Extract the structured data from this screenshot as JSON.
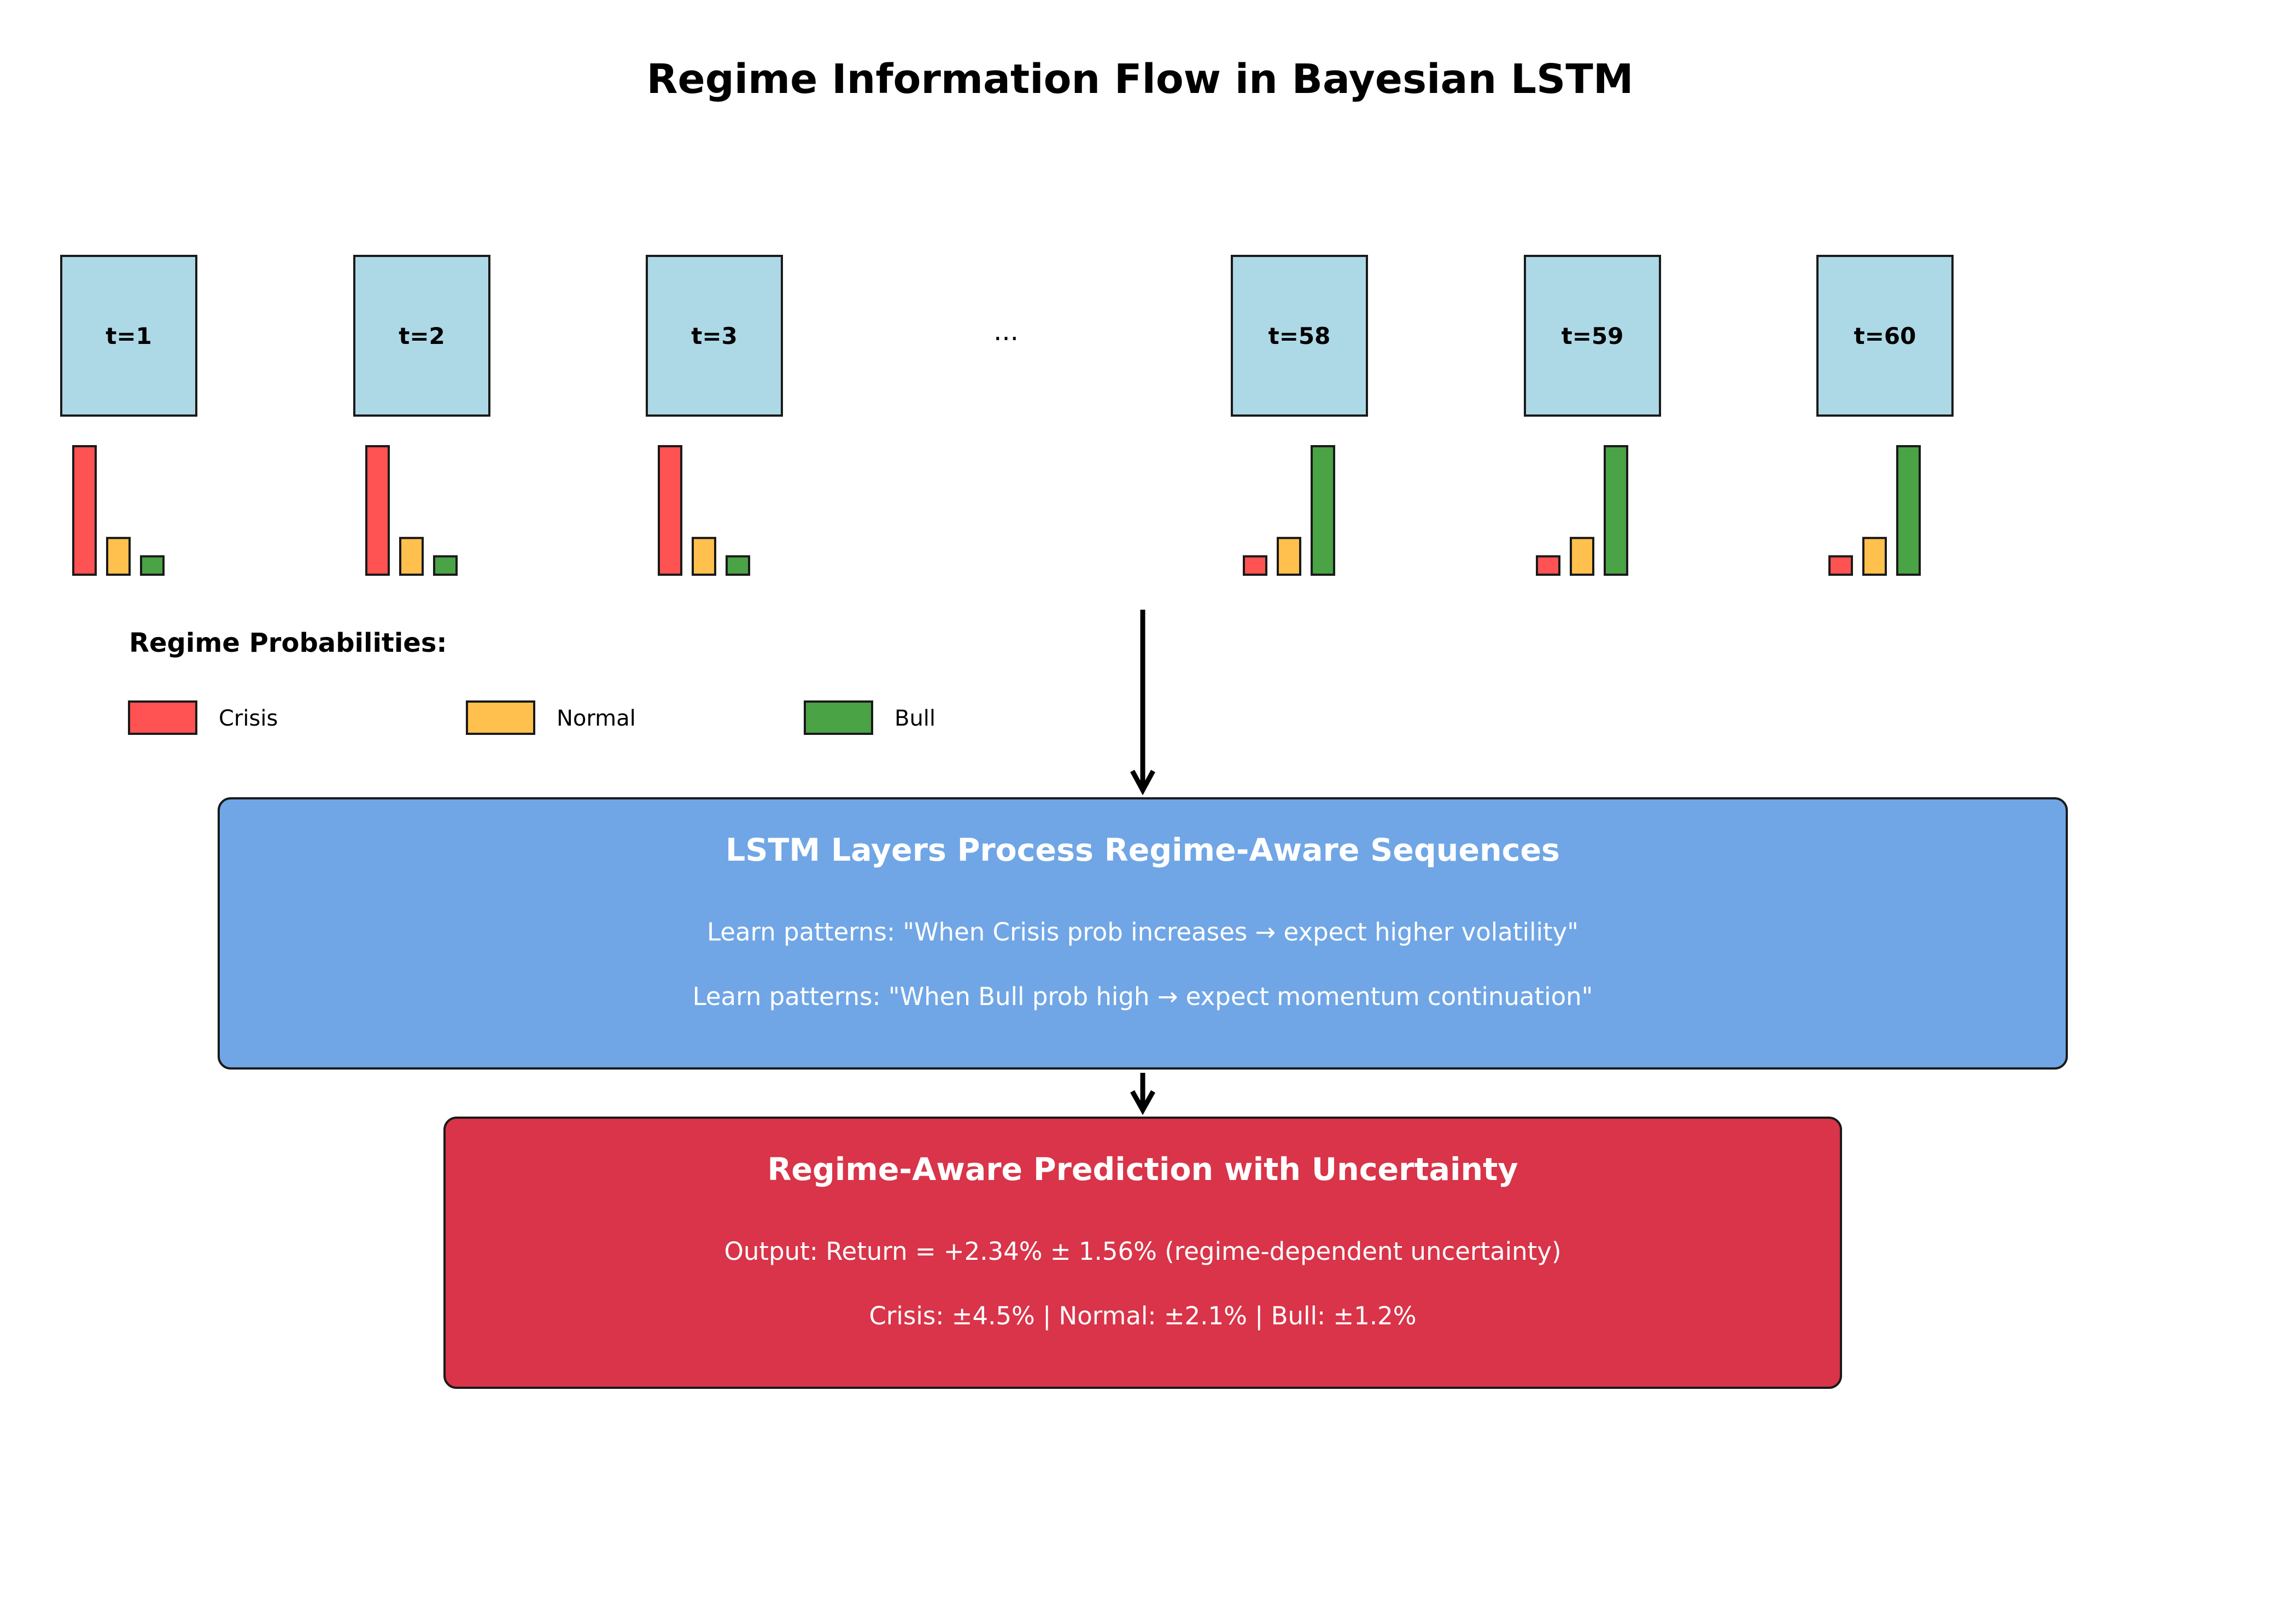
{
  "title": "Regime Information Flow in Bayesian LSTM",
  "timesteps": [
    {
      "label": "t=1",
      "probs": [
        0.7,
        0.2,
        0.1
      ]
    },
    {
      "label": "t=2",
      "probs": [
        0.7,
        0.2,
        0.1
      ]
    },
    {
      "label": "t=3",
      "probs": [
        0.7,
        0.2,
        0.1
      ]
    },
    {
      "label": "t=58",
      "probs": [
        0.1,
        0.2,
        0.7
      ]
    },
    {
      "label": "t=59",
      "probs": [
        0.1,
        0.2,
        0.7
      ]
    },
    {
      "label": "t=60",
      "probs": [
        0.1,
        0.2,
        0.7
      ]
    }
  ],
  "ellipsis": "...",
  "legend": {
    "title": "Regime Probabilities:",
    "items": [
      {
        "label": "Crisis",
        "color": "#ff5252"
      },
      {
        "label": "Normal",
        "color": "#ffc04d"
      },
      {
        "label": "Bull",
        "color": "#4aa345"
      }
    ]
  },
  "colors": {
    "timestep_box": "#add8e6",
    "lstm_box": "#70a6e6",
    "prediction_box": "#d93449",
    "box_text": "#ffffff",
    "stroke": "#1a1a1a"
  },
  "lstm": {
    "title": "LSTM Layers Process Regime-Aware Sequences",
    "lines": [
      "Learn patterns: \"When Crisis prob increases → expect higher volatility\"",
      "Learn patterns: \"When Bull prob high → expect momentum continuation\""
    ]
  },
  "prediction": {
    "title": "Regime-Aware Prediction with Uncertainty",
    "lines": [
      "Output: Return = +2.34% ± 1.56% (regime-dependent uncertainty)",
      "Crisis: ±4.5% | Normal: ±2.1% | Bull: ±1.2%"
    ]
  }
}
